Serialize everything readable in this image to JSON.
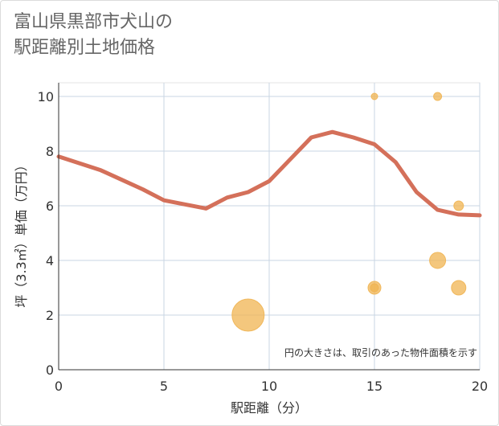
{
  "title_lines": [
    "富山県黒部市犬山の",
    "駅距離別土地価格"
  ],
  "chart_data": {
    "type": "line+scatter",
    "xlabel": "駅距離（分）",
    "ylabel": "坪（3.3㎡）単価（万円）",
    "xlim": [
      0,
      20
    ],
    "ylim": [
      0,
      10.5
    ],
    "x_ticks": [
      0,
      5,
      10,
      15,
      20
    ],
    "y_ticks": [
      0,
      2,
      4,
      6,
      8,
      10
    ],
    "grid": true,
    "note": "円の大きさは、取引のあった物件面積を示す",
    "line": {
      "color": "#d4705a",
      "x": [
        0,
        1,
        2,
        3,
        4,
        5,
        6,
        7,
        8,
        9,
        10,
        11,
        12,
        13,
        14,
        15,
        16,
        17,
        18,
        19,
        20
      ],
      "y": [
        7.8,
        7.55,
        7.3,
        6.95,
        6.6,
        6.2,
        6.05,
        5.9,
        6.3,
        6.5,
        6.9,
        7.7,
        8.5,
        8.7,
        8.5,
        8.25,
        7.6,
        6.5,
        5.85,
        5.68,
        5.65
      ]
    },
    "scatter": {
      "color": "#f0b452",
      "points": [
        {
          "x": 9,
          "y": 2.0,
          "size": 20
        },
        {
          "x": 15,
          "y": 10.0,
          "size": 4
        },
        {
          "x": 18,
          "y": 10.0,
          "size": 5
        },
        {
          "x": 19,
          "y": 6.0,
          "size": 6
        },
        {
          "x": 18,
          "y": 4.0,
          "size": 10
        },
        {
          "x": 15,
          "y": 3.0,
          "size": 8
        },
        {
          "x": 15,
          "y": 3.0,
          "size": 5
        },
        {
          "x": 19,
          "y": 3.0,
          "size": 9
        }
      ]
    }
  }
}
